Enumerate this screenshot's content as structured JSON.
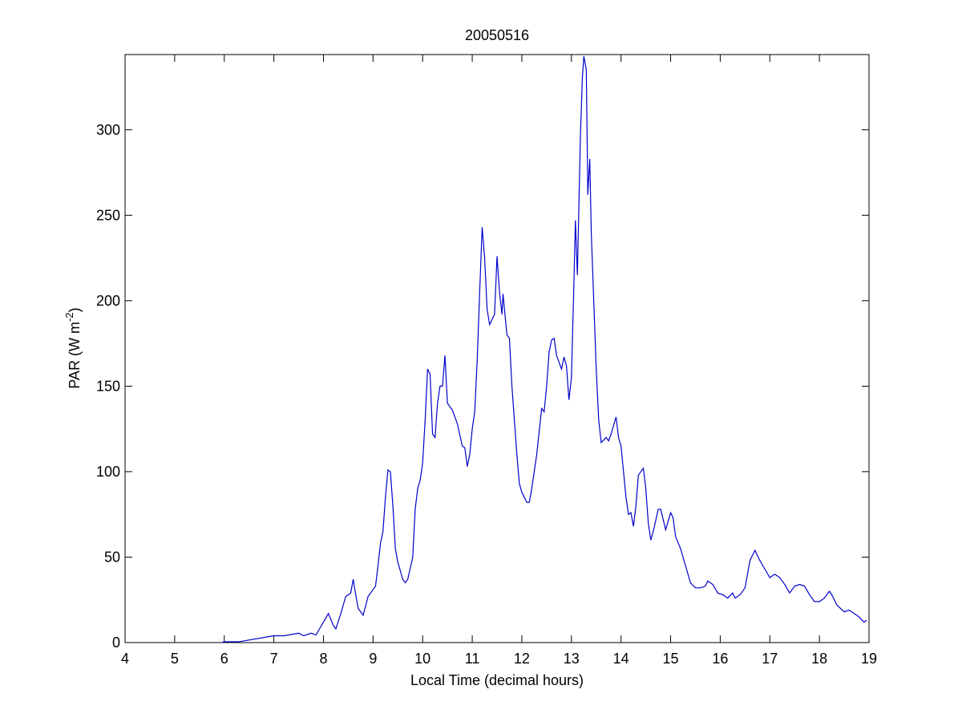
{
  "chart_data": {
    "type": "line",
    "title": "20050516",
    "xlabel": "Local Time (decimal hours)",
    "ylabel": [
      "PAR (W m",
      "-2",
      ")"
    ],
    "xlim": [
      4,
      19
    ],
    "xticks": [
      4,
      5,
      6,
      7,
      8,
      9,
      10,
      11,
      12,
      13,
      14,
      15,
      16,
      17,
      18,
      19
    ],
    "ylim": [
      0,
      344
    ],
    "yticks": [
      0,
      50,
      100,
      150,
      200,
      250,
      300
    ],
    "grid": false,
    "series": [
      {
        "color": "#0000cc",
        "x": [
          5.95,
          6.0,
          6.3,
          6.5,
          6.8,
          7.0,
          7.2,
          7.4,
          7.5,
          7.6,
          7.75,
          7.85,
          8.0,
          8.1,
          8.2,
          8.25,
          8.35,
          8.45,
          8.5,
          8.55,
          8.6,
          8.65,
          8.7,
          8.8,
          8.9,
          9.0,
          9.05,
          9.1,
          9.15,
          9.2,
          9.25,
          9.3,
          9.35,
          9.4,
          9.45,
          9.5,
          9.6,
          9.65,
          9.7,
          9.8,
          9.85,
          9.9,
          9.95,
          10.0,
          10.05,
          10.1,
          10.15,
          10.2,
          10.25,
          10.3,
          10.35,
          10.4,
          10.45,
          10.5,
          10.6,
          10.7,
          10.8,
          10.85,
          10.9,
          10.95,
          11.0,
          11.05,
          11.1,
          11.15,
          11.2,
          11.25,
          11.3,
          11.35,
          11.45,
          11.5,
          11.55,
          11.6,
          11.62,
          11.7,
          11.75,
          11.8,
          11.9,
          11.95,
          12.0,
          12.1,
          12.15,
          12.2,
          12.3,
          12.4,
          12.45,
          12.5,
          12.55,
          12.6,
          12.65,
          12.7,
          12.8,
          12.85,
          12.9,
          12.95,
          13.0,
          13.05,
          13.08,
          13.12,
          13.18,
          13.22,
          13.25,
          13.3,
          13.33,
          13.37,
          13.4,
          13.45,
          13.5,
          13.55,
          13.6,
          13.7,
          13.75,
          13.8,
          13.9,
          13.95,
          14.0,
          14.1,
          14.15,
          14.2,
          14.25,
          14.3,
          14.35,
          14.45,
          14.5,
          14.55,
          14.6,
          14.65,
          14.75,
          14.8,
          14.9,
          15.0,
          15.05,
          15.1,
          15.2,
          15.3,
          15.4,
          15.5,
          15.6,
          15.7,
          15.75,
          15.85,
          15.95,
          16.05,
          16.15,
          16.25,
          16.3,
          16.4,
          16.5,
          16.6,
          16.7,
          16.8,
          16.9,
          17.0,
          17.1,
          17.2,
          17.3,
          17.4,
          17.5,
          17.6,
          17.7,
          17.8,
          17.9,
          18.0,
          18.1,
          18.2,
          18.25,
          18.35,
          18.5,
          18.6,
          18.7,
          18.8,
          18.9,
          18.95
        ],
        "values": [
          0,
          0.5,
          0.5,
          1.5,
          3,
          4,
          4,
          5,
          5.5,
          4,
          5.5,
          4.5,
          12,
          17,
          10,
          8,
          17,
          27,
          28,
          29,
          37,
          28,
          20,
          16,
          27,
          31,
          33,
          45,
          58,
          65,
          85,
          101,
          100,
          80,
          55,
          47,
          37,
          35,
          37,
          50,
          78,
          90,
          95,
          105,
          130,
          160,
          157,
          122,
          120,
          140,
          150,
          150,
          168,
          140,
          136,
          128,
          115,
          114,
          103,
          110,
          125,
          135,
          165,
          205,
          243,
          225,
          195,
          186,
          192,
          226,
          205,
          192,
          204,
          180,
          178,
          150,
          110,
          93,
          88,
          82,
          82,
          90,
          110,
          137,
          135,
          150,
          170,
          177,
          178,
          168,
          160,
          167,
          162,
          142,
          155,
          210,
          247,
          215,
          295,
          330,
          343,
          335,
          262,
          283,
          240,
          200,
          160,
          130,
          117,
          120,
          118,
          122,
          132,
          120,
          115,
          85,
          75,
          76,
          68,
          80,
          98,
          102,
          90,
          70,
          60,
          65,
          78,
          78,
          66,
          76,
          73,
          62,
          55,
          45,
          35,
          32,
          32,
          33,
          36,
          34,
          29,
          28,
          26,
          29,
          26,
          28,
          32,
          48,
          54,
          48,
          43,
          38,
          40,
          38,
          34,
          29,
          33,
          34,
          33,
          28,
          24,
          24,
          26,
          30,
          28,
          22,
          18,
          19,
          17,
          15,
          12,
          13
        ]
      }
    ]
  }
}
